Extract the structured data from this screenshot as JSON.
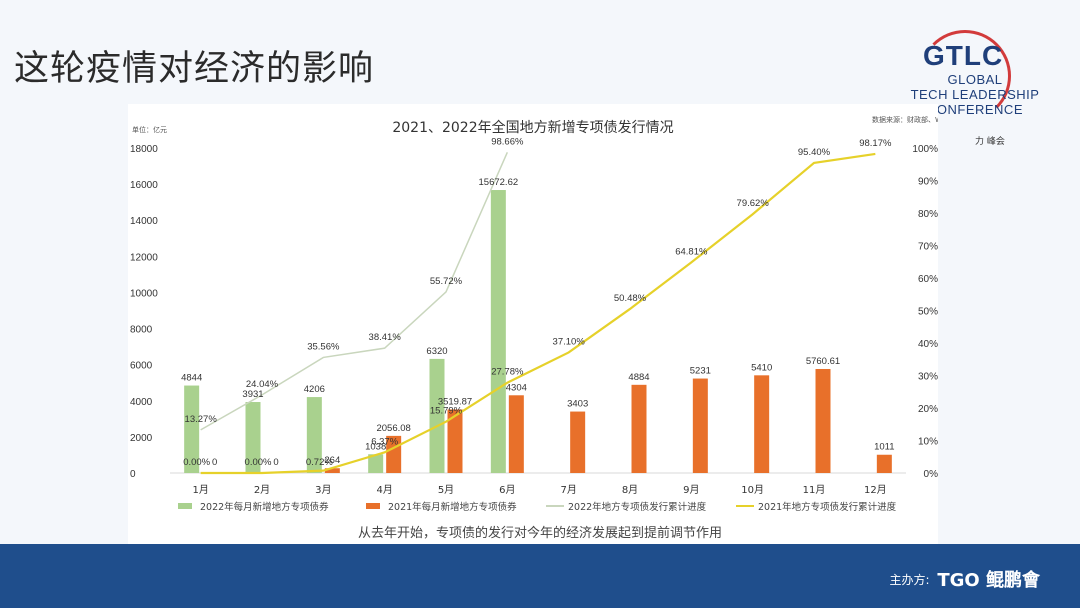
{
  "slide": {
    "title": "这轮疫情对经济的影响",
    "caption": "从去年开始，专项债的发行对今年的经济发展起到提前调节作用",
    "footer_label": "主办方:",
    "footer_org": "TGO 鲲鹏會"
  },
  "logo": {
    "acronym": "GTLC",
    "line1": "GLOBAL",
    "line2": "TECH LEADERSHIP",
    "line3": "CONFERENCE",
    "sub": "力 峰会"
  },
  "colors": {
    "green": "#a9d18e",
    "orange": "#e8702a",
    "green_line": "#c9d6bd",
    "yellow_line": "#e6d12a",
    "axis_text": "#333333",
    "footer": "#1f4e8c"
  },
  "chart_data": {
    "type": "bar",
    "title": "2021、2022年全国地方新增专项债发行情况",
    "unit_note": "单位：亿元",
    "source_note": "数据来源：财政部、Wind",
    "categories": [
      "1月",
      "2月",
      "3月",
      "4月",
      "5月",
      "6月",
      "7月",
      "8月",
      "9月",
      "10月",
      "11月",
      "12月"
    ],
    "ylim": [
      0,
      18000
    ],
    "yticks": [
      0,
      2000,
      4000,
      6000,
      8000,
      10000,
      12000,
      14000,
      16000,
      18000
    ],
    "y2lim": [
      0,
      100
    ],
    "y2ticks": [
      "0%",
      "10%",
      "20%",
      "30%",
      "40%",
      "50%",
      "60%",
      "70%",
      "80%",
      "90%",
      "100%"
    ],
    "bar_series": [
      {
        "name": "2022年每月新增地方专项债券",
        "values": [
          4844,
          3931,
          4206,
          1038,
          6320,
          15672.62,
          null,
          null,
          null,
          null,
          null,
          null
        ],
        "labels": [
          "4844",
          "3931",
          "4206",
          "1038",
          "6320",
          "15672.62",
          "",
          "",
          "",
          "",
          "",
          ""
        ]
      },
      {
        "name": "2021年每月新增地方专项债券",
        "values": [
          0,
          0,
          264,
          2056.08,
          3519.87,
          4304,
          3403,
          4884,
          5231,
          5410,
          5760.61,
          1011
        ],
        "labels": [
          "0",
          "0",
          "264",
          "2056.08",
          "3519.87",
          "4304",
          "3403",
          "4884",
          "5231",
          "5410",
          "5760.61",
          "1011"
        ]
      }
    ],
    "line_series": [
      {
        "name": "2022年地方专项债发行累计进度",
        "values": [
          13.27,
          24.04,
          35.56,
          38.41,
          55.72,
          98.66,
          null,
          null,
          null,
          null,
          null,
          null
        ],
        "labels": [
          "13.27%",
          "24.04%",
          "35.56%",
          "38.41%",
          "55.72%",
          "98.66%",
          "",
          "",
          "",
          "",
          "",
          ""
        ]
      },
      {
        "name": "2021年地方专项债发行累计进度",
        "values": [
          0,
          0,
          0.72,
          6.37,
          15.79,
          27.78,
          37.1,
          50.48,
          64.81,
          79.62,
          95.4,
          98.17
        ],
        "labels": [
          "0.00%",
          "0.00%",
          "0.72%",
          "6.37%",
          "15.79%",
          "27.78%",
          "37.10%",
          "50.48%",
          "64.81%",
          "79.62%",
          "95.40%",
          "98.17%"
        ]
      }
    ],
    "legend_position": "bottom",
    "grid": false
  }
}
